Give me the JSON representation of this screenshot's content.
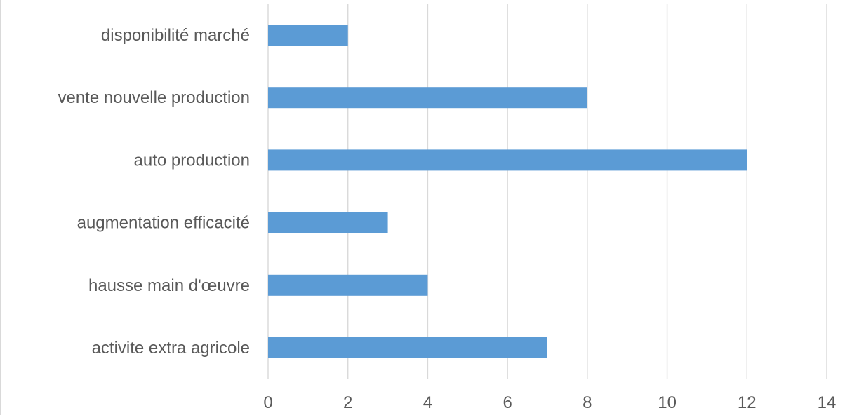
{
  "chart_data": {
    "type": "bar",
    "orientation": "horizontal",
    "categories": [
      "disponibilité marché",
      "vente nouvelle production",
      "auto production",
      "augmentation efficacité",
      "hausse main d'œuvre",
      "activite extra agricole"
    ],
    "values": [
      2,
      8,
      12,
      3,
      4,
      7
    ],
    "xlim": [
      0,
      14
    ],
    "xticks": [
      "0",
      "2",
      "4",
      "6",
      "8",
      "10",
      "12",
      "14"
    ],
    "title": "",
    "xlabel": "",
    "ylabel": "",
    "grid": true,
    "legend": "none",
    "bar_color": "#5b9bd5",
    "grid_color": "#d9d9d9",
    "text_color": "#595959"
  }
}
